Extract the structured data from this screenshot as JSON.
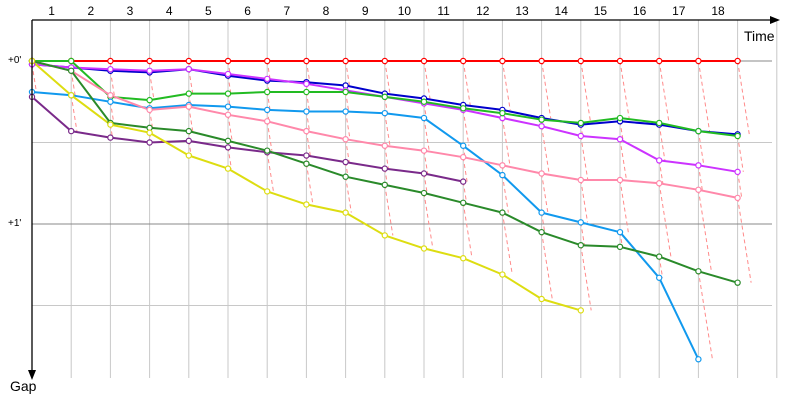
{
  "chart_data": {
    "type": "line",
    "xlabel": "Time",
    "ylabel": "Gap",
    "x_ticks": [
      "1",
      "2",
      "3",
      "4",
      "5",
      "6",
      "7",
      "8",
      "9",
      "10",
      "11",
      "12",
      "13",
      "14",
      "15",
      "16",
      "17",
      "18"
    ],
    "y_ticks": [
      {
        "value": 0,
        "label": "+0'"
      },
      {
        "value": 1,
        "label": "+1'"
      }
    ],
    "ylim": [
      1.87,
      -0.05
    ],
    "grid": true,
    "series": [
      {
        "color": "#ff0000",
        "markers": "open",
        "points": [
          [
            0,
            0
          ],
          [
            1,
            0
          ],
          [
            2,
            0
          ],
          [
            3,
            0
          ],
          [
            4,
            0
          ],
          [
            5,
            0
          ],
          [
            6,
            0
          ],
          [
            7,
            0
          ],
          [
            8,
            0
          ],
          [
            9,
            0
          ],
          [
            10,
            0
          ],
          [
            11,
            0
          ],
          [
            12,
            0
          ],
          [
            13,
            0
          ],
          [
            14,
            0
          ],
          [
            15,
            0
          ],
          [
            16,
            0
          ],
          [
            17,
            0
          ],
          [
            18,
            0
          ]
        ]
      },
      {
        "color": "#0000cc",
        "markers": "open",
        "points": [
          [
            0,
            0.02
          ],
          [
            1,
            0.04
          ],
          [
            2,
            0.06
          ],
          [
            3,
            0.07
          ],
          [
            4,
            0.05
          ],
          [
            5,
            0.09
          ],
          [
            6,
            0.12
          ],
          [
            7,
            0.13
          ],
          [
            8,
            0.15
          ],
          [
            9,
            0.2
          ],
          [
            10,
            0.23
          ],
          [
            11,
            0.27
          ],
          [
            12,
            0.3
          ],
          [
            13,
            0.35
          ],
          [
            14,
            0.39
          ],
          [
            15,
            0.37
          ],
          [
            16,
            0.39
          ],
          [
            17,
            0.43
          ],
          [
            18,
            0.45
          ]
        ]
      },
      {
        "color": "#cc33ff",
        "markers": "open",
        "points": [
          [
            0,
            0.02
          ],
          [
            1,
            0.04
          ],
          [
            2,
            0.05
          ],
          [
            3,
            0.06
          ],
          [
            4,
            0.05
          ],
          [
            5,
            0.08
          ],
          [
            6,
            0.11
          ],
          [
            7,
            0.14
          ],
          [
            8,
            0.18
          ],
          [
            9,
            0.22
          ],
          [
            10,
            0.26
          ],
          [
            11,
            0.3
          ],
          [
            12,
            0.35
          ],
          [
            13,
            0.4
          ],
          [
            14,
            0.46
          ],
          [
            15,
            0.48
          ],
          [
            16,
            0.61
          ],
          [
            17,
            0.64
          ],
          [
            18,
            0.68
          ]
        ]
      },
      {
        "color": "#22bb22",
        "markers": "open",
        "points": [
          [
            0,
            0
          ],
          [
            1,
            0
          ],
          [
            2,
            0.22
          ],
          [
            3,
            0.24
          ],
          [
            4,
            0.2
          ],
          [
            5,
            0.2
          ],
          [
            6,
            0.19
          ],
          [
            7,
            0.19
          ],
          [
            8,
            0.19
          ],
          [
            9,
            0.22
          ],
          [
            10,
            0.25
          ],
          [
            11,
            0.29
          ],
          [
            12,
            0.32
          ],
          [
            13,
            0.36
          ],
          [
            14,
            0.38
          ],
          [
            15,
            0.35
          ],
          [
            16,
            0.38
          ],
          [
            17,
            0.43
          ],
          [
            18,
            0.46
          ]
        ]
      },
      {
        "color": "#1199ee",
        "markers": "open",
        "points": [
          [
            0,
            0.19
          ],
          [
            1,
            0.21
          ],
          [
            2,
            0.25
          ],
          [
            3,
            0.29
          ],
          [
            4,
            0.27
          ],
          [
            5,
            0.28
          ],
          [
            6,
            0.3
          ],
          [
            7,
            0.31
          ],
          [
            8,
            0.31
          ],
          [
            9,
            0.32
          ],
          [
            10,
            0.35
          ],
          [
            11,
            0.52
          ],
          [
            12,
            0.7
          ],
          [
            13,
            0.93
          ],
          [
            14,
            0.99
          ],
          [
            15,
            1.05
          ],
          [
            16,
            1.33
          ],
          [
            17,
            1.83
          ]
        ]
      },
      {
        "color": "#ff88aa",
        "markers": "open",
        "points": [
          [
            0,
            0
          ],
          [
            1,
            0.06
          ],
          [
            2,
            0.21
          ],
          [
            3,
            0.3
          ],
          [
            4,
            0.28
          ],
          [
            5,
            0.33
          ],
          [
            6,
            0.37
          ],
          [
            7,
            0.43
          ],
          [
            8,
            0.48
          ],
          [
            9,
            0.52
          ],
          [
            10,
            0.55
          ],
          [
            11,
            0.59
          ],
          [
            12,
            0.64
          ],
          [
            13,
            0.69
          ],
          [
            14,
            0.73
          ],
          [
            15,
            0.73
          ],
          [
            16,
            0.75
          ],
          [
            17,
            0.79
          ],
          [
            18,
            0.84
          ]
        ]
      },
      {
        "color": "#7a2a8a",
        "markers": "open",
        "points": [
          [
            0,
            0.22
          ],
          [
            1,
            0.43
          ],
          [
            2,
            0.47
          ],
          [
            3,
            0.5
          ],
          [
            4,
            0.49
          ],
          [
            5,
            0.53
          ],
          [
            6,
            0.56
          ],
          [
            7,
            0.58
          ],
          [
            8,
            0.62
          ],
          [
            9,
            0.66
          ],
          [
            10,
            0.69
          ],
          [
            11,
            0.74
          ]
        ]
      },
      {
        "color": "#2a8a2a",
        "markers": "open",
        "points": [
          [
            0,
            0
          ],
          [
            1,
            0.06
          ],
          [
            2,
            0.38
          ],
          [
            3,
            0.41
          ],
          [
            4,
            0.43
          ],
          [
            5,
            0.49
          ],
          [
            6,
            0.55
          ],
          [
            7,
            0.63
          ],
          [
            8,
            0.71
          ],
          [
            9,
            0.76
          ],
          [
            10,
            0.81
          ],
          [
            11,
            0.87
          ],
          [
            12,
            0.93
          ],
          [
            13,
            1.05
          ],
          [
            14,
            1.13
          ],
          [
            15,
            1.14
          ],
          [
            16,
            1.2
          ],
          [
            17,
            1.29
          ],
          [
            18,
            1.36
          ]
        ]
      },
      {
        "color": "#dddd11",
        "markers": "open",
        "points": [
          [
            0,
            0
          ],
          [
            1,
            0.21
          ],
          [
            2,
            0.39
          ],
          [
            3,
            0.44
          ],
          [
            4,
            0.58
          ],
          [
            5,
            0.66
          ],
          [
            6,
            0.8
          ],
          [
            7,
            0.88
          ],
          [
            8,
            0.93
          ],
          [
            9,
            1.07
          ],
          [
            10,
            1.15
          ],
          [
            11,
            1.21
          ],
          [
            12,
            1.31
          ],
          [
            13,
            1.46
          ],
          [
            14,
            1.53
          ]
        ]
      }
    ]
  }
}
